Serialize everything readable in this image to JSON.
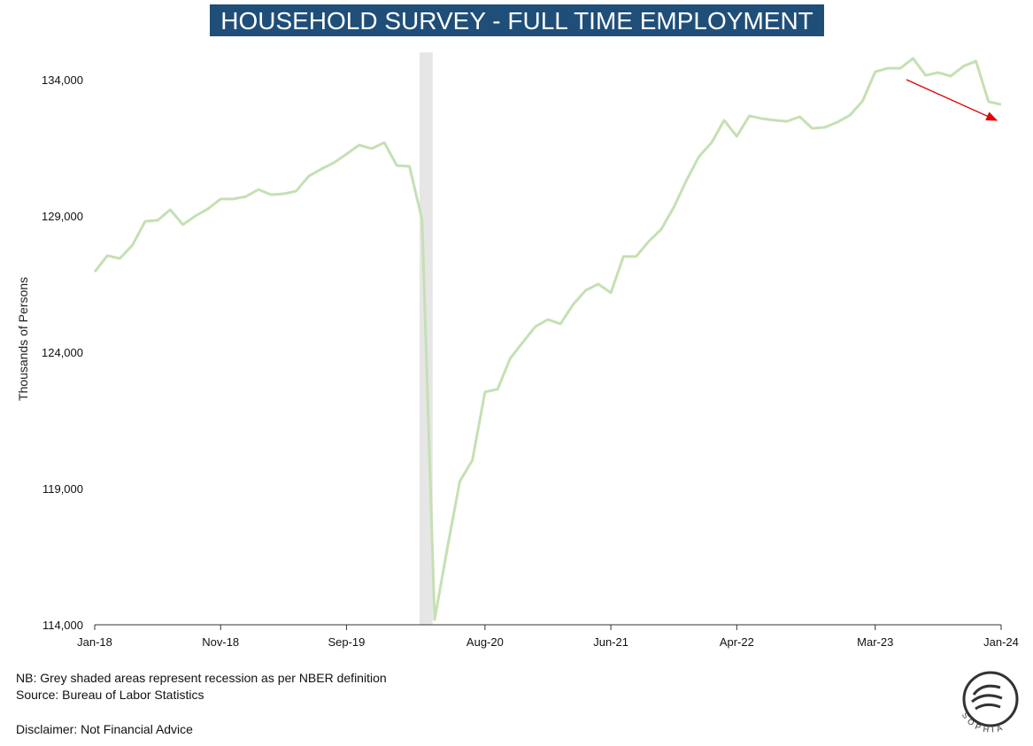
{
  "chart_data": {
    "type": "line",
    "title": "HOUSEHOLD SURVEY - FULL TIME EMPLOYMENT",
    "y_label": "Thousands of Persons",
    "categories": [
      "Jan-18",
      null,
      null,
      null,
      null,
      null,
      null,
      null,
      null,
      null,
      "Nov-18",
      null,
      null,
      null,
      null,
      null,
      null,
      null,
      null,
      null,
      "Sep-19",
      null,
      null,
      null,
      null,
      null,
      null,
      null,
      null,
      null,
      null,
      "Aug-20",
      null,
      null,
      null,
      null,
      null,
      null,
      null,
      null,
      null,
      "Jun-21",
      null,
      null,
      null,
      null,
      null,
      null,
      null,
      null,
      null,
      "Apr-22",
      null,
      null,
      null,
      null,
      null,
      null,
      null,
      null,
      null,
      null,
      "Mar-23",
      null,
      null,
      null,
      null,
      null,
      null,
      null,
      null,
      null,
      "Jan-24"
    ],
    "series": [
      {
        "color": "#c5e0b3",
        "values": [
          126950,
          127540,
          127440,
          127930,
          128800,
          128840,
          129230,
          128680,
          129000,
          129260,
          129620,
          129620,
          129710,
          129970,
          129780,
          129810,
          129910,
          130460,
          130720,
          130950,
          131270,
          131600,
          131470,
          131690,
          130850,
          130820,
          128870,
          114190,
          116790,
          119260,
          120040,
          122540,
          122640,
          123770,
          124360,
          124940,
          125200,
          125040,
          125750,
          126270,
          126500,
          126180,
          127510,
          127510,
          128060,
          128510,
          129320,
          130300,
          131180,
          131690,
          132510,
          131920,
          132670,
          132570,
          132510,
          132470,
          132640,
          132210,
          132250,
          132440,
          132700,
          133220,
          134290,
          134420,
          134420,
          134780,
          134160,
          134260,
          134130,
          134490,
          134680,
          133190,
          133090
        ]
      }
    ],
    "ylim": [
      114000,
      135000
    ],
    "yticks": [
      {
        "value": 114000,
        "label": "114,000"
      },
      {
        "value": 119000,
        "label": "119,000"
      },
      {
        "value": 124000,
        "label": "124,000"
      },
      {
        "value": 129000,
        "label": "129,000"
      },
      {
        "value": 134000,
        "label": "134,000"
      }
    ],
    "recession": {
      "from": 25.8,
      "to": 26.85,
      "color": "#e6e6e6"
    },
    "notes": [
      "NB: Grey shaded areas represent recession as per NBER definition",
      "Source: Bureau of Labor Statistics",
      "Disclaimer: Not Financial Advice"
    ],
    "logo_text": "SOPHIA"
  }
}
